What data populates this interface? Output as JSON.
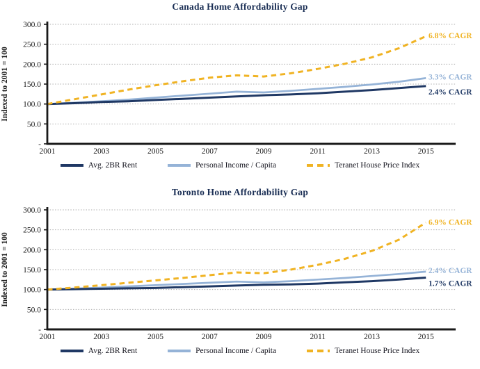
{
  "colors": {
    "rent": "#1F3864",
    "income": "#95B3D7",
    "teranet": "#F0B323",
    "grid": "#ADADAD",
    "axis": "#1A1A1A",
    "title": "#1B2F55",
    "tick_text": "#1A1A1A"
  },
  "chart_data": [
    {
      "type": "line",
      "title": "Canada Home Affordability Gap",
      "ylabel": "Indexed to 2001 = 100",
      "xlabel": "",
      "ylim": [
        0,
        300
      ],
      "grid": true,
      "legend_position": "bottom",
      "x": [
        2001,
        2002,
        2003,
        2004,
        2005,
        2006,
        2007,
        2008,
        2009,
        2010,
        2011,
        2012,
        2013,
        2014,
        2015
      ],
      "x_tick_labels": [
        "2001",
        "2003",
        "2005",
        "2007",
        "2009",
        "2011",
        "2013",
        "2015"
      ],
      "y_ticks": [
        {
          "value": 300,
          "label": "300.0"
        },
        {
          "value": 250,
          "label": "250.0"
        },
        {
          "value": 200,
          "label": "200.0"
        },
        {
          "value": 150,
          "label": "150.0"
        },
        {
          "value": 100,
          "label": "100.0"
        },
        {
          "value": 50,
          "label": "50.0"
        },
        {
          "value": 0,
          "label": "-"
        }
      ],
      "series": [
        {
          "name": "Avg. 2BR Rent",
          "color": "#1F3864",
          "dashed": false,
          "values": [
            100,
            102,
            105,
            107,
            110,
            113,
            116,
            119,
            122,
            124,
            127,
            131,
            135,
            140,
            145
          ]
        },
        {
          "name": "Personal Income / Capita",
          "color": "#95B3D7",
          "dashed": false,
          "values": [
            100,
            103,
            107,
            111,
            116,
            121,
            126,
            131,
            129,
            133,
            138,
            143,
            149,
            156,
            165
          ]
        },
        {
          "name": "Teranet House Price Index",
          "color": "#F0B323",
          "dashed": true,
          "values": [
            100,
            112,
            124,
            136,
            147,
            157,
            166,
            172,
            169,
            177,
            188,
            201,
            217,
            240,
            270
          ]
        }
      ],
      "annotations": [
        {
          "text": "6.8% CAGR",
          "series_index": 2,
          "dy": -1
        },
        {
          "text": "3.3% CAGR",
          "series_index": 1,
          "dy": -2
        },
        {
          "text": "2.4% CAGR",
          "series_index": 0,
          "dy": 8
        }
      ]
    },
    {
      "type": "line",
      "title": "Toronto Home Affordability Gap",
      "ylabel": "Indexed to 2001 = 100",
      "xlabel": "",
      "ylim": [
        0,
        300
      ],
      "grid": true,
      "legend_position": "bottom",
      "x": [
        2001,
        2002,
        2003,
        2004,
        2005,
        2006,
        2007,
        2008,
        2009,
        2010,
        2011,
        2012,
        2013,
        2014,
        2015
      ],
      "x_tick_labels": [
        "2001",
        "2003",
        "2005",
        "2007",
        "2009",
        "2011",
        "2013",
        "2015"
      ],
      "y_ticks": [
        {
          "value": 300,
          "label": "300.0"
        },
        {
          "value": 250,
          "label": "250.0"
        },
        {
          "value": 200,
          "label": "200.0"
        },
        {
          "value": 150,
          "label": "150.0"
        },
        {
          "value": 100,
          "label": "100.0"
        },
        {
          "value": 50,
          "label": "50.0"
        },
        {
          "value": 0,
          "label": "-"
        }
      ],
      "series": [
        {
          "name": "Avg. 2BR Rent",
          "color": "#1F3864",
          "dashed": false,
          "values": [
            100,
            101,
            102,
            103,
            104,
            106,
            108,
            110,
            112,
            113,
            115,
            118,
            121,
            125,
            130
          ]
        },
        {
          "name": "Personal Income / Capita",
          "color": "#95B3D7",
          "dashed": false,
          "values": [
            100,
            102,
            105,
            108,
            111,
            114,
            117,
            120,
            118,
            121,
            125,
            129,
            134,
            139,
            145
          ]
        },
        {
          "name": "Teranet House Price Index",
          "color": "#F0B323",
          "dashed": true,
          "values": [
            100,
            105,
            111,
            117,
            123,
            129,
            136,
            143,
            141,
            150,
            162,
            177,
            197,
            225,
            268
          ]
        }
      ],
      "annotations": [
        {
          "text": "6.9% CAGR",
          "series_index": 2,
          "dy": -1
        },
        {
          "text": "2.4% CAGR",
          "series_index": 1,
          "dy": -2
        },
        {
          "text": "1.7% CAGR",
          "series_index": 0,
          "dy": 8
        }
      ]
    }
  ]
}
